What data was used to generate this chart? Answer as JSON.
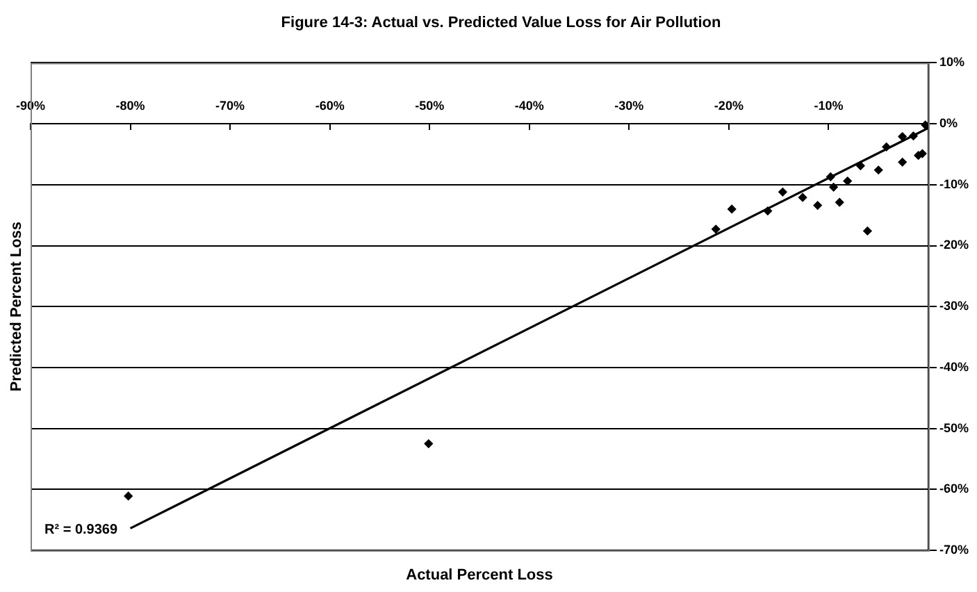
{
  "chart_data": {
    "type": "scatter",
    "title": "Figure 14-3: Actual vs. Predicted Value Loss for Air Pollution",
    "xlabel": "Actual Percent Loss",
    "ylabel": "Predicted Percent Loss",
    "annotations": [
      "R² = 0.9369"
    ],
    "series": [
      {
        "type": "scatter",
        "color": "#000000",
        "marker": "diamond",
        "x": [
          -80.2,
          -50.1,
          -21.3,
          -19.7,
          -16.1,
          -14.6,
          -12.6,
          -11.1,
          -9.8,
          -9.5,
          -8.9,
          -8.1,
          -6.8,
          -6.1,
          -5.0,
          -4.2,
          -2.6,
          -2.6,
          -1.5,
          -1.0,
          -0.6,
          -0.3
        ],
        "values": [
          -61.1,
          -52.5,
          -17.3,
          -14.0,
          -14.3,
          -11.2,
          -12.1,
          -13.4,
          -8.7,
          -10.4,
          -12.9,
          -9.4,
          -6.9,
          -17.6,
          -7.6,
          -3.8,
          -2.1,
          -6.3,
          -2.0,
          -5.2,
          -4.9,
          -0.2
        ]
      },
      {
        "type": "line",
        "color": "#000000",
        "marker": "none",
        "line_style": "solid",
        "x": [
          -80,
          0
        ],
        "values": [
          -66.4,
          -0.7
        ]
      }
    ],
    "xlim": [
      -90,
      0
    ],
    "ylim": [
      -70,
      10
    ],
    "xticks": [
      {
        "value": -90,
        "label": "-90%"
      },
      {
        "value": -80,
        "label": "-80%"
      },
      {
        "value": -70,
        "label": "-70%"
      },
      {
        "value": -60,
        "label": "-60%"
      },
      {
        "value": -50,
        "label": "-50%"
      },
      {
        "value": -40,
        "label": "-40%"
      },
      {
        "value": -30,
        "label": "-30%"
      },
      {
        "value": -20,
        "label": "-20%"
      },
      {
        "value": -10,
        "label": "-10%"
      }
    ],
    "yticks": [
      {
        "value": 10,
        "label": "10%"
      },
      {
        "value": 0,
        "label": "0%"
      },
      {
        "value": -10,
        "label": "-10%"
      },
      {
        "value": -20,
        "label": "-20%"
      },
      {
        "value": -30,
        "label": "-30%"
      },
      {
        "value": -40,
        "label": "-40%"
      },
      {
        "value": -50,
        "label": "-50%"
      },
      {
        "value": -60,
        "label": "-60%"
      },
      {
        "value": -70,
        "label": "-70%"
      }
    ],
    "grid": "y",
    "legend": false
  }
}
